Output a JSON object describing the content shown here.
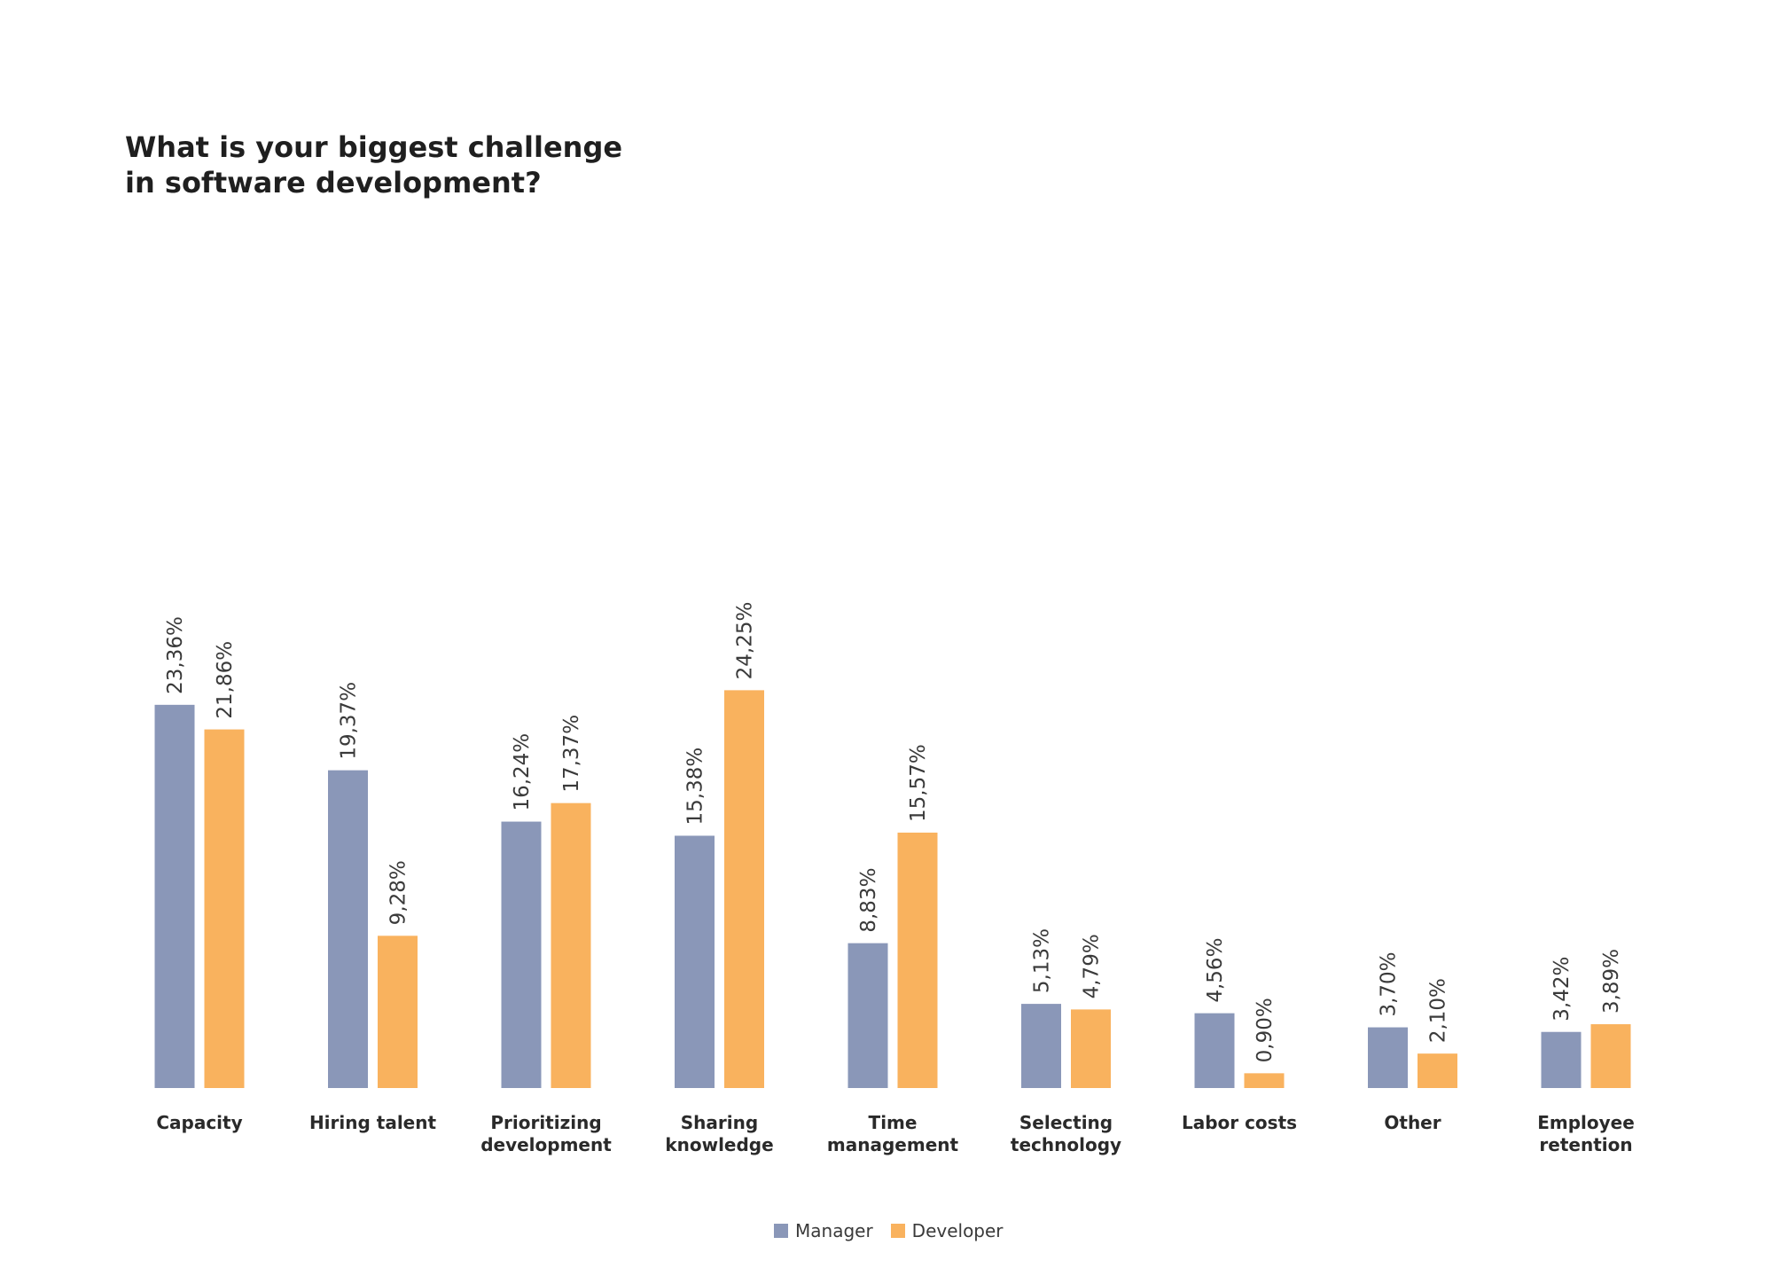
{
  "chart_data": {
    "type": "bar",
    "title_lines": [
      "What is your biggest challenge",
      "in software development?"
    ],
    "categories": [
      [
        "Capacity"
      ],
      [
        "Hiring talent"
      ],
      [
        "Prioritizing",
        "development"
      ],
      [
        "Sharing",
        "knowledge"
      ],
      [
        "Time",
        "management"
      ],
      [
        "Selecting",
        "technology"
      ],
      [
        "Labor costs"
      ],
      [
        "Other"
      ],
      [
        "Employee",
        "retention"
      ]
    ],
    "series": [
      {
        "name": "Manager",
        "color": "#8a97b8",
        "values": [
          23.36,
          19.37,
          16.24,
          15.38,
          8.83,
          5.13,
          4.56,
          3.7,
          3.42
        ],
        "labels": [
          "23,36%",
          "19,37%",
          "16,24%",
          "15,38%",
          "8,83%",
          "5,13%",
          "4,56%",
          "3,70%",
          "3,42%"
        ]
      },
      {
        "name": "Developer",
        "color": "#f9b25e",
        "values": [
          21.86,
          9.28,
          17.37,
          24.25,
          15.57,
          4.79,
          0.9,
          2.1,
          3.89
        ],
        "labels": [
          "21,86%",
          "9,28%",
          "17,37%",
          "24,25%",
          "15,57%",
          "4,79%",
          "0,90%",
          "2,10%",
          "3,89%"
        ]
      }
    ],
    "ylim": [
      0,
      25
    ],
    "grid": false,
    "legend_position": "bottom-center"
  }
}
